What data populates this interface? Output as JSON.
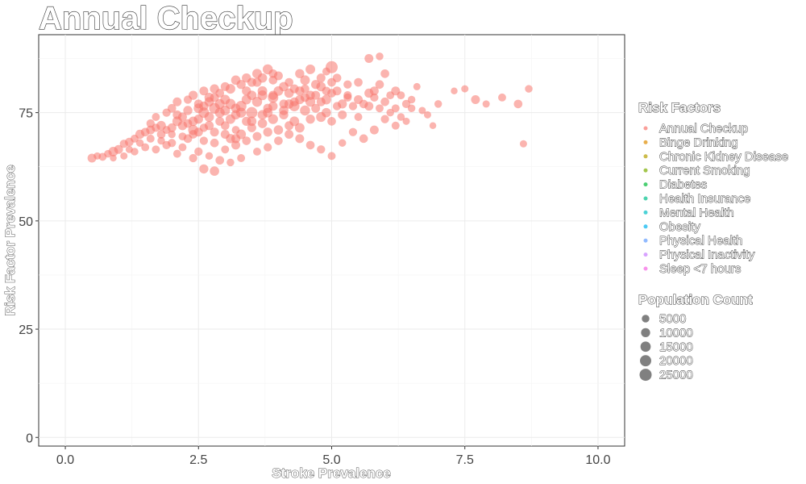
{
  "chart_data": {
    "type": "scatter",
    "title": "Annual Checkup",
    "xlabel": "Stroke Prevalence",
    "ylabel": "Risk Factor Prevalence",
    "xlim": [
      -0.5,
      10.5
    ],
    "ylim": [
      -2,
      93
    ],
    "x_ticks": [
      0.0,
      2.5,
      5.0,
      7.5,
      10.0
    ],
    "x_tick_labels": [
      "0.0",
      "2.5",
      "5.0",
      "7.5",
      "10.0"
    ],
    "y_ticks": [
      0,
      25,
      50,
      75
    ],
    "y_tick_labels": [
      "0",
      "25",
      "50",
      "75"
    ],
    "grid": true,
    "legend_position": "right",
    "point_color": "#F8766D",
    "series": [
      {
        "points": [
          [
            0.5,
            64.5
          ],
          [
            0.6,
            65.0
          ],
          [
            0.7,
            64.8
          ],
          [
            0.8,
            65.5
          ],
          [
            0.9,
            66.0
          ],
          [
            1.0,
            66.5
          ],
          [
            1.1,
            67.8
          ],
          [
            1.2,
            68.2
          ],
          [
            1.3,
            69.0
          ],
          [
            1.2,
            66.5
          ],
          [
            1.4,
            70.0
          ],
          [
            1.5,
            70.5
          ],
          [
            1.6,
            71.0
          ],
          [
            1.7,
            71.5
          ],
          [
            1.8,
            72.0
          ],
          [
            1.9,
            71.0
          ],
          [
            2.0,
            70.0
          ],
          [
            2.1,
            73.0
          ],
          [
            2.2,
            74.0
          ],
          [
            2.3,
            72.5
          ],
          [
            2.4,
            71.0
          ],
          [
            2.5,
            73.5
          ],
          [
            2.6,
            75.0
          ],
          [
            2.7,
            74.0
          ],
          [
            2.8,
            76.0
          ],
          [
            2.9,
            73.0
          ],
          [
            3.0,
            75.5
          ],
          [
            3.1,
            77.0
          ],
          [
            3.2,
            74.5
          ],
          [
            3.3,
            76.5
          ],
          [
            3.4,
            78.0
          ],
          [
            3.5,
            75.0
          ],
          [
            3.6,
            77.5
          ],
          [
            3.7,
            79.0
          ],
          [
            3.8,
            76.0
          ],
          [
            3.9,
            78.5
          ],
          [
            4.0,
            80.0
          ],
          [
            4.1,
            77.0
          ],
          [
            4.2,
            79.5
          ],
          [
            4.3,
            76.5
          ],
          [
            4.4,
            78.0
          ],
          [
            4.5,
            80.5
          ],
          [
            4.6,
            77.5
          ],
          [
            4.7,
            79.0
          ],
          [
            4.8,
            81.0
          ],
          [
            4.9,
            78.0
          ],
          [
            5.0,
            79.5
          ],
          [
            5.1,
            80.0
          ],
          [
            5.2,
            77.0
          ],
          [
            5.3,
            79.0
          ],
          [
            1.5,
            67.0
          ],
          [
            1.8,
            68.5
          ],
          [
            2.0,
            68.0
          ],
          [
            2.2,
            69.5
          ],
          [
            2.4,
            70.0
          ],
          [
            2.6,
            71.5
          ],
          [
            2.8,
            70.5
          ],
          [
            3.0,
            72.0
          ],
          [
            3.2,
            71.0
          ],
          [
            3.4,
            73.0
          ],
          [
            2.5,
            77.0
          ],
          [
            2.7,
            78.5
          ],
          [
            2.9,
            79.5
          ],
          [
            3.1,
            80.5
          ],
          [
            3.3,
            81.5
          ],
          [
            3.5,
            82.0
          ],
          [
            3.7,
            83.0
          ],
          [
            3.9,
            82.5
          ],
          [
            2.3,
            78.0
          ],
          [
            2.6,
            80.0
          ],
          [
            2.0,
            76.0
          ],
          [
            1.9,
            75.0
          ],
          [
            1.7,
            74.0
          ],
          [
            2.1,
            77.5
          ],
          [
            2.4,
            79.0
          ],
          [
            3.6,
            84.0
          ],
          [
            3.8,
            85.0
          ],
          [
            4.0,
            83.5
          ],
          [
            4.2,
            82.0
          ],
          [
            4.4,
            84.0
          ],
          [
            2.2,
            67.0
          ],
          [
            2.5,
            66.0
          ],
          [
            2.7,
            65.0
          ],
          [
            2.9,
            64.0
          ],
          [
            3.0,
            66.5
          ],
          [
            3.2,
            67.5
          ],
          [
            2.4,
            64.5
          ],
          [
            2.6,
            62.0
          ],
          [
            2.8,
            61.5
          ],
          [
            2.1,
            65.5
          ],
          [
            3.1,
            69.0
          ],
          [
            3.3,
            70.0
          ],
          [
            3.5,
            71.5
          ],
          [
            3.7,
            72.5
          ],
          [
            3.9,
            73.5
          ],
          [
            4.1,
            74.5
          ],
          [
            4.3,
            73.0
          ],
          [
            4.5,
            75.5
          ],
          [
            4.7,
            76.0
          ],
          [
            4.9,
            75.0
          ],
          [
            3.4,
            68.5
          ],
          [
            3.6,
            69.5
          ],
          [
            3.8,
            70.5
          ],
          [
            4.0,
            71.0
          ],
          [
            4.2,
            72.0
          ],
          [
            4.4,
            71.5
          ],
          [
            4.6,
            73.5
          ],
          [
            4.8,
            74.0
          ],
          [
            5.0,
            73.0
          ],
          [
            5.2,
            74.5
          ],
          [
            5.4,
            76.5
          ],
          [
            5.5,
            78.0
          ],
          [
            5.6,
            77.0
          ],
          [
            5.7,
            79.5
          ],
          [
            5.8,
            78.5
          ],
          [
            5.9,
            76.0
          ],
          [
            6.0,
            77.5
          ],
          [
            6.1,
            75.0
          ],
          [
            6.2,
            80.0
          ],
          [
            5.5,
            74.0
          ],
          [
            5.3,
            81.5
          ],
          [
            5.1,
            83.0
          ],
          [
            4.9,
            84.5
          ],
          [
            5.0,
            85.5
          ],
          [
            5.7,
            87.5
          ],
          [
            5.9,
            88.0
          ],
          [
            6.0,
            84.0
          ],
          [
            6.3,
            79.0
          ],
          [
            6.5,
            78.0
          ],
          [
            6.6,
            81.0
          ],
          [
            5.6,
            69.0
          ],
          [
            5.8,
            71.0
          ],
          [
            6.0,
            73.5
          ],
          [
            6.2,
            72.0
          ],
          [
            5.4,
            70.5
          ],
          [
            5.2,
            68.0
          ],
          [
            5.0,
            65.0
          ],
          [
            4.8,
            66.5
          ],
          [
            4.6,
            67.5
          ],
          [
            4.4,
            69.0
          ],
          [
            6.8,
            74.5
          ],
          [
            7.0,
            77.0
          ],
          [
            7.3,
            80.0
          ],
          [
            7.5,
            80.5
          ],
          [
            7.7,
            78.0
          ],
          [
            7.9,
            77.0
          ],
          [
            8.2,
            78.5
          ],
          [
            8.5,
            77.0
          ],
          [
            8.7,
            80.5
          ],
          [
            8.6,
            67.8
          ],
          [
            6.5,
            76.0
          ],
          [
            6.7,
            75.5
          ],
          [
            6.4,
            73.0
          ],
          [
            6.9,
            72.0
          ],
          [
            6.3,
            74.0
          ],
          [
            3.0,
            78.0
          ],
          [
            3.2,
            76.0
          ],
          [
            3.4,
            80.0
          ],
          [
            2.8,
            78.5
          ],
          [
            2.6,
            76.5
          ],
          [
            1.3,
            66.0
          ],
          [
            1.6,
            69.0
          ],
          [
            1.4,
            68.0
          ],
          [
            1.1,
            65.0
          ],
          [
            0.9,
            64.5
          ],
          [
            1.7,
            66.5
          ],
          [
            1.9,
            67.5
          ],
          [
            2.3,
            69.0
          ],
          [
            2.5,
            70.5
          ],
          [
            2.7,
            72.0
          ],
          [
            3.5,
            79.0
          ],
          [
            3.7,
            80.0
          ],
          [
            3.9,
            79.0
          ],
          [
            4.1,
            81.0
          ],
          [
            4.3,
            80.5
          ],
          [
            4.5,
            82.5
          ],
          [
            4.7,
            81.5
          ],
          [
            4.5,
            78.5
          ],
          [
            4.2,
            77.0
          ],
          [
            3.8,
            75.0
          ],
          [
            2.9,
            75.0
          ],
          [
            3.1,
            73.5
          ],
          [
            3.3,
            75.0
          ],
          [
            3.5,
            73.0
          ],
          [
            3.7,
            74.5
          ],
          [
            3.9,
            76.5
          ],
          [
            4.1,
            75.5
          ],
          [
            4.3,
            77.5
          ],
          [
            4.6,
            79.0
          ],
          [
            4.8,
            77.5
          ],
          [
            2.2,
            72.0
          ],
          [
            2.4,
            73.0
          ],
          [
            2.0,
            71.5
          ],
          [
            1.8,
            70.0
          ],
          [
            1.6,
            72.5
          ],
          [
            2.1,
            74.5
          ],
          [
            2.3,
            75.5
          ],
          [
            2.5,
            76.0
          ],
          [
            2.7,
            77.5
          ],
          [
            2.9,
            77.0
          ],
          [
            3.0,
            70.0
          ],
          [
            3.2,
            69.0
          ],
          [
            2.8,
            68.0
          ],
          [
            2.6,
            68.5
          ],
          [
            3.6,
            66.0
          ],
          [
            3.8,
            67.0
          ],
          [
            4.0,
            68.5
          ],
          [
            4.2,
            70.0
          ],
          [
            3.3,
            64.5
          ],
          [
            3.1,
            63.5
          ],
          [
            5.5,
            82.0
          ],
          [
            5.3,
            78.5
          ],
          [
            5.7,
            76.5
          ],
          [
            6.1,
            79.0
          ],
          [
            6.4,
            77.0
          ],
          [
            5.9,
            81.5
          ],
          [
            5.8,
            80.0
          ],
          [
            6.2,
            76.0
          ],
          [
            5.1,
            76.5
          ],
          [
            4.9,
            80.0
          ],
          [
            3.6,
            82.0
          ],
          [
            3.4,
            83.0
          ],
          [
            3.2,
            82.5
          ],
          [
            3.0,
            81.0
          ],
          [
            2.8,
            80.5
          ],
          [
            3.9,
            84.0
          ],
          [
            4.6,
            85.0
          ],
          [
            4.8,
            83.0
          ],
          [
            5.0,
            82.0
          ],
          [
            4.4,
            80.0
          ]
        ],
        "sizes": [
          9000,
          4000,
          6000,
          5000,
          12000,
          9000,
          7000,
          8000,
          6000,
          4000,
          10000,
          8000,
          9000,
          7000,
          11000,
          6000,
          5000,
          12000,
          9000,
          8000,
          14000,
          10000,
          16000,
          12000,
          18000,
          9000,
          13000,
          15000,
          11000,
          17000,
          12000,
          20000,
          14000,
          13000,
          10000,
          16000,
          12000,
          9000,
          11000,
          15000,
          10000,
          8000,
          13000,
          9000,
          11000,
          12000,
          8000,
          9000,
          10000,
          7000,
          6000,
          5000,
          7000,
          6000,
          8000,
          7000,
          9000,
          8000,
          6000,
          10000,
          9000,
          11000,
          8000,
          12000,
          10000,
          9000,
          11000,
          8000,
          7000,
          9000,
          8000,
          7000,
          6000,
          9000,
          10000,
          12000,
          14000,
          9000,
          8000,
          10000,
          6000,
          7000,
          5000,
          8000,
          6000,
          9000,
          7000,
          10000,
          11000,
          6000,
          10000,
          12000,
          9000,
          11000,
          13000,
          10000,
          12000,
          14000,
          9000,
          11000,
          8000,
          9000,
          10000,
          11000,
          9000,
          12000,
          10000,
          13000,
          8000,
          9000,
          7000,
          9000,
          8000,
          10000,
          7000,
          6000,
          8000,
          5000,
          9000,
          6000,
          7000,
          8000,
          6000,
          25000,
          9000,
          5000,
          8000,
          6000,
          5000,
          4000,
          8000,
          9000,
          7000,
          6000,
          7000,
          5000,
          6000,
          7000,
          8000,
          9000,
          4000,
          5000,
          3000,
          4000,
          9000,
          4000,
          6000,
          8000,
          5000,
          4000,
          5000,
          4000,
          4000,
          3000,
          5000,
          12000,
          11000,
          10000,
          9000,
          10000,
          5000,
          6000,
          5000,
          4000,
          3000,
          6000,
          7000,
          8000,
          9000,
          10000,
          11000,
          12000,
          10000,
          11000,
          9000,
          12000,
          10000,
          9000,
          11000,
          12000,
          13000,
          12000,
          14000,
          11000,
          12000,
          10000,
          11000,
          9000,
          10000,
          9000,
          10000,
          11000,
          9000,
          8000,
          7000,
          9000,
          10000,
          12000,
          11000,
          13000,
          9000,
          10000,
          8000,
          7000,
          6000,
          7000,
          8000,
          9000,
          6000,
          5000,
          8000,
          7000,
          9000,
          6000,
          7000,
          8000,
          9000,
          6000,
          7000,
          8000,
          9000,
          10000,
          11000,
          9000,
          10000,
          8000,
          12000,
          9000,
          8000,
          10000
        ]
      }
    ],
    "legend_color": {
      "title": "Risk Factors",
      "entries": [
        {
          "label": "Annual Checkup",
          "color": "#F8766D"
        },
        {
          "label": "Binge Drinking",
          "color": "#DE8C00"
        },
        {
          "label": "Chronic Kidney Disease",
          "color": "#B79F00"
        },
        {
          "label": "Current Smoking",
          "color": "#7CAE00"
        },
        {
          "label": "Diabetes",
          "color": "#00BA38"
        },
        {
          "label": "Health Insurance",
          "color": "#00C08B"
        },
        {
          "label": "Mental Health",
          "color": "#00BFC4"
        },
        {
          "label": "Obesity",
          "color": "#00B4F0"
        },
        {
          "label": "Physical Health",
          "color": "#619CFF"
        },
        {
          "label": "Physical Inactivity",
          "color": "#C77CFF"
        },
        {
          "label": "Sleep <7 hours",
          "color": "#F564E3"
        }
      ]
    },
    "legend_size": {
      "title": "Population Count",
      "entries": [
        {
          "label": "5000",
          "value": 5000
        },
        {
          "label": "10000",
          "value": 10000
        },
        {
          "label": "15000",
          "value": 15000
        },
        {
          "label": "20000",
          "value": 20000
        },
        {
          "label": "25000",
          "value": 25000
        }
      ]
    }
  }
}
